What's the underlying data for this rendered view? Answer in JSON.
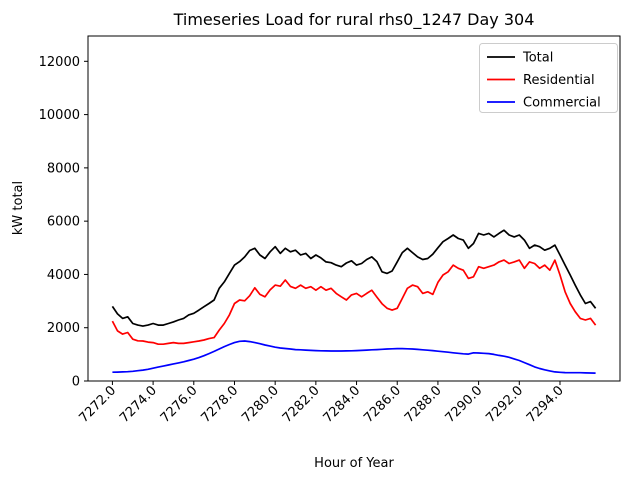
{
  "figure": {
    "title": "Timeseries Load for rural rhs0_1247  Day 304",
    "xlabel": "Hour of Year",
    "ylabel": "kW total",
    "background": "#ffffff"
  },
  "axes": {
    "xlim": [
      7270.8,
      7296.95
    ],
    "ylim": [
      0,
      12950
    ],
    "xticks": [
      7272,
      7274,
      7276,
      7278,
      7280,
      7282,
      7284,
      7286,
      7288,
      7290,
      7292,
      7294
    ],
    "xtick_labels": [
      "7272.0",
      "7274.0",
      "7276.0",
      "7278.0",
      "7280.0",
      "7282.0",
      "7284.0",
      "7286.0",
      "7288.0",
      "7290.0",
      "7292.0",
      "7294.0"
    ],
    "yticks": [
      0,
      2000,
      4000,
      6000,
      8000,
      10000,
      12000
    ],
    "ytick_labels": [
      "0",
      "2000",
      "4000",
      "6000",
      "8000",
      "10000",
      "12000"
    ],
    "spine_color": "#000000"
  },
  "legend": {
    "position": "upper right",
    "border_color": "#cccccc",
    "items": [
      {
        "label": "Total",
        "color": "#000000"
      },
      {
        "label": "Residential",
        "color": "#ff0000"
      },
      {
        "label": "Commercial",
        "color": "#0000ff"
      }
    ]
  },
  "chart_data": {
    "type": "line",
    "title": "Timeseries Load for rural rhs0_1247  Day 304",
    "xlabel": "Hour of Year",
    "ylabel": "kW total",
    "xlim": [
      7270.8,
      7296.95
    ],
    "ylim": [
      0,
      12950
    ],
    "grid": false,
    "legend_position": "upper right",
    "x": [
      7272.0,
      7272.25,
      7272.5,
      7272.75,
      7273.0,
      7273.25,
      7273.5,
      7273.75,
      7274.0,
      7274.25,
      7274.5,
      7274.75,
      7275.0,
      7275.25,
      7275.5,
      7275.75,
      7276.0,
      7276.25,
      7276.5,
      7276.75,
      7277.0,
      7277.25,
      7277.5,
      7277.75,
      7278.0,
      7278.25,
      7278.5,
      7278.75,
      7279.0,
      7279.25,
      7279.5,
      7279.75,
      7280.0,
      7280.25,
      7280.5,
      7280.75,
      7281.0,
      7281.25,
      7281.5,
      7281.75,
      7282.0,
      7282.25,
      7282.5,
      7282.75,
      7283.0,
      7283.25,
      7283.5,
      7283.75,
      7284.0,
      7284.25,
      7284.5,
      7284.75,
      7285.0,
      7285.25,
      7285.5,
      7285.75,
      7286.0,
      7286.25,
      7286.5,
      7286.75,
      7287.0,
      7287.25,
      7287.5,
      7287.75,
      7288.0,
      7288.25,
      7288.5,
      7288.75,
      7289.0,
      7289.25,
      7289.5,
      7289.75,
      7290.0,
      7290.25,
      7290.5,
      7290.75,
      7291.0,
      7291.25,
      7291.5,
      7291.75,
      7292.0,
      7292.25,
      7292.5,
      7292.75,
      7293.0,
      7293.25,
      7293.5,
      7293.75,
      7294.0,
      7294.25,
      7294.5,
      7294.75,
      7295.0,
      7295.25,
      7295.5,
      7295.75
    ],
    "series": [
      {
        "name": "Total",
        "color": "#000000",
        "values": [
          2800,
          2520,
          2350,
          2410,
          2160,
          2100,
          2060,
          2100,
          2160,
          2100,
          2100,
          2160,
          2220,
          2290,
          2350,
          2480,
          2540,
          2660,
          2790,
          2910,
          3040,
          3480,
          3720,
          4040,
          4350,
          4480,
          4660,
          4900,
          4980,
          4730,
          4600,
          4850,
          5040,
          4790,
          4980,
          4850,
          4910,
          4730,
          4790,
          4600,
          4730,
          4620,
          4470,
          4440,
          4350,
          4290,
          4430,
          4510,
          4350,
          4410,
          4560,
          4660,
          4480,
          4100,
          4040,
          4130,
          4470,
          4820,
          4980,
          4820,
          4660,
          4560,
          4600,
          4760,
          5000,
          5230,
          5350,
          5480,
          5350,
          5290,
          4980,
          5160,
          5540,
          5480,
          5540,
          5410,
          5540,
          5660,
          5480,
          5410,
          5480,
          5290,
          4980,
          5100,
          5040,
          4910,
          4980,
          5100,
          4730,
          4350,
          3980,
          3600,
          3230,
          2910,
          2980,
          2730
        ]
      },
      {
        "name": "Residential",
        "color": "#ff0000",
        "values": [
          2250,
          1880,
          1760,
          1820,
          1570,
          1510,
          1500,
          1460,
          1440,
          1380,
          1380,
          1410,
          1440,
          1410,
          1410,
          1440,
          1470,
          1500,
          1540,
          1590,
          1630,
          1910,
          2160,
          2480,
          2910,
          3040,
          3010,
          3200,
          3500,
          3250,
          3160,
          3420,
          3600,
          3560,
          3790,
          3550,
          3480,
          3600,
          3480,
          3540,
          3410,
          3540,
          3410,
          3480,
          3290,
          3160,
          3040,
          3230,
          3290,
          3160,
          3290,
          3410,
          3150,
          2900,
          2730,
          2660,
          2730,
          3100,
          3480,
          3600,
          3540,
          3290,
          3350,
          3250,
          3700,
          3980,
          4100,
          4350,
          4230,
          4160,
          3850,
          3910,
          4290,
          4230,
          4290,
          4350,
          4470,
          4540,
          4410,
          4470,
          4540,
          4230,
          4470,
          4410,
          4230,
          4350,
          4160,
          4540,
          3980,
          3350,
          2910,
          2600,
          2350,
          2290,
          2350,
          2100
        ]
      },
      {
        "name": "Commercial",
        "color": "#0000ff",
        "values": [
          330,
          335,
          340,
          350,
          365,
          385,
          410,
          440,
          480,
          520,
          560,
          600,
          640,
          680,
          720,
          770,
          820,
          880,
          950,
          1030,
          1110,
          1200,
          1290,
          1370,
          1440,
          1490,
          1500,
          1480,
          1440,
          1400,
          1350,
          1310,
          1270,
          1240,
          1220,
          1200,
          1180,
          1170,
          1160,
          1150,
          1140,
          1135,
          1130,
          1125,
          1125,
          1125,
          1130,
          1135,
          1140,
          1150,
          1160,
          1170,
          1180,
          1190,
          1200,
          1210,
          1215,
          1215,
          1210,
          1200,
          1185,
          1170,
          1155,
          1140,
          1120,
          1100,
          1080,
          1060,
          1040,
          1020,
          1010,
          1060,
          1050,
          1040,
          1030,
          1000,
          960,
          930,
          890,
          830,
          770,
          690,
          610,
          530,
          470,
          420,
          380,
          340,
          325,
          315,
          310,
          310,
          310,
          305,
          300,
          295
        ]
      }
    ]
  }
}
